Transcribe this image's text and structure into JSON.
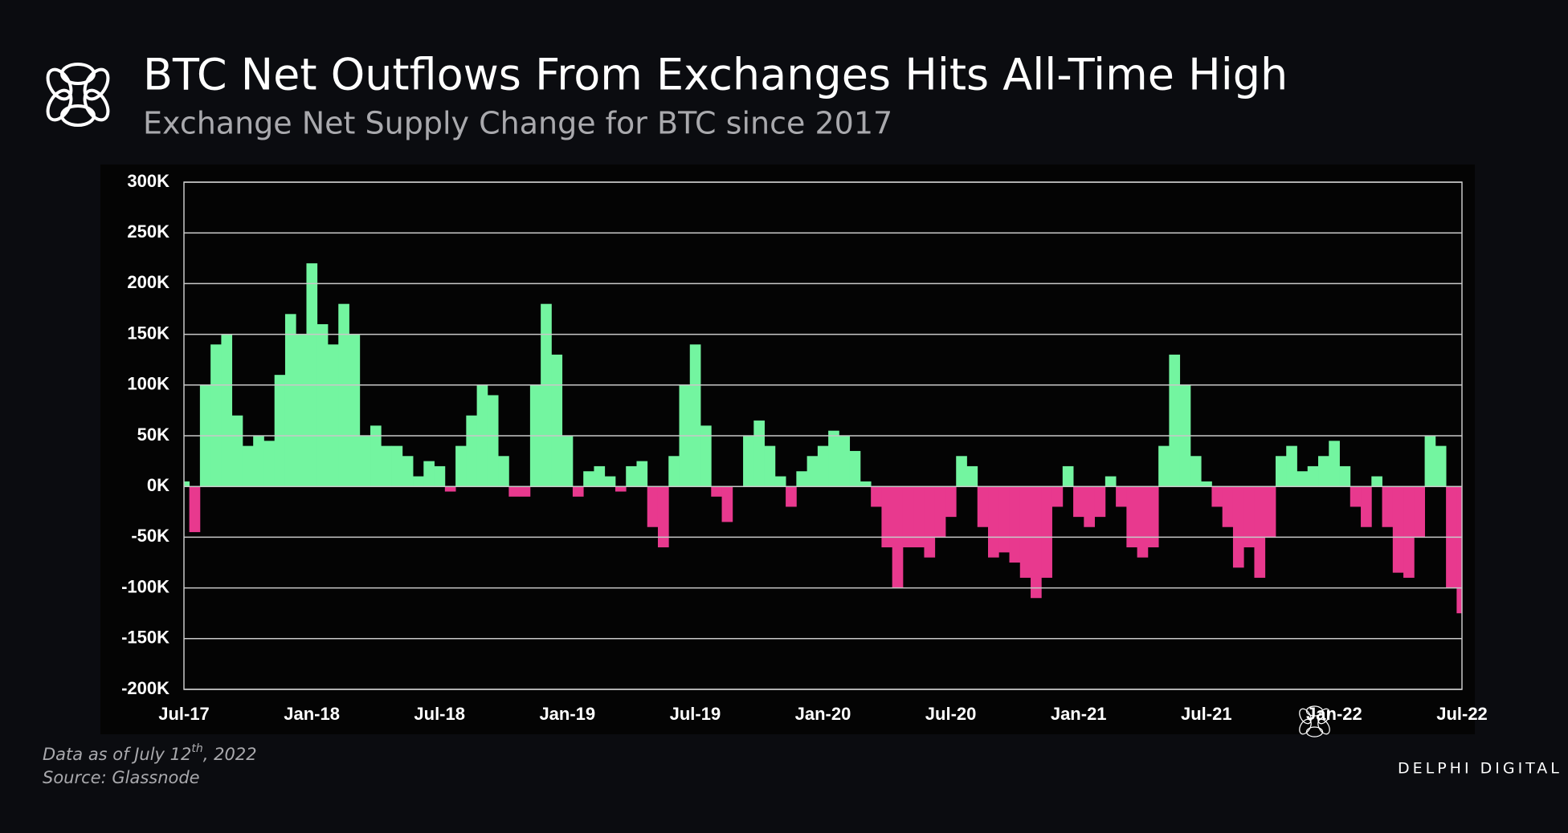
{
  "chart_data": {
    "type": "bar",
    "title": "BTC Net Outflows From Exchanges Hits All-Time High",
    "subtitle": "Exchange Net Supply Change for BTC since 2017",
    "categories": [
      "Jul-17",
      null,
      null,
      null,
      null,
      null,
      null,
      null,
      null,
      null,
      null,
      null,
      "Jan-18",
      null,
      null,
      null,
      null,
      null,
      null,
      null,
      null,
      null,
      null,
      null,
      "Jul-18",
      null,
      null,
      null,
      null,
      null,
      null,
      null,
      null,
      null,
      null,
      null,
      "Jan-19",
      null,
      null,
      null,
      null,
      null,
      null,
      null,
      null,
      null,
      null,
      null,
      "Jul-19",
      null,
      null,
      null,
      null,
      null,
      null,
      null,
      null,
      null,
      null,
      null,
      "Jan-20",
      null,
      null,
      null,
      null,
      null,
      null,
      null,
      null,
      null,
      null,
      null,
      "Jul-20",
      null,
      null,
      null,
      null,
      null,
      null,
      null,
      null,
      null,
      null,
      null,
      "Jan-21",
      null,
      null,
      null,
      null,
      null,
      null,
      null,
      null,
      null,
      null,
      null,
      "Jul-21",
      null,
      null,
      null,
      null,
      null,
      null,
      null,
      null,
      null,
      null,
      null,
      "Jan-22",
      null,
      null,
      null,
      null,
      null,
      null,
      null,
      null,
      null,
      null,
      null,
      "Jul-22"
    ],
    "values": [
      5,
      -45,
      100,
      140,
      150,
      70,
      40,
      50,
      45,
      110,
      170,
      150,
      220,
      160,
      140,
      180,
      150,
      50,
      60,
      40,
      40,
      30,
      10,
      25,
      20,
      -5,
      40,
      70,
      100,
      90,
      30,
      -10,
      -10,
      100,
      180,
      130,
      50,
      -10,
      15,
      20,
      10,
      -5,
      20,
      25,
      -40,
      -60,
      30,
      100,
      140,
      60,
      -10,
      -35,
      0,
      50,
      65,
      40,
      10,
      -20,
      15,
      30,
      40,
      55,
      50,
      35,
      5,
      -20,
      -60,
      -100,
      -60,
      -60,
      -70,
      -50,
      -30,
      30,
      20,
      -40,
      -70,
      -65,
      -75,
      -90,
      -110,
      -90,
      -20,
      20,
      -30,
      -40,
      -30,
      10,
      -20,
      -60,
      -70,
      -60,
      40,
      130,
      100,
      30,
      5,
      -20,
      -40,
      -80,
      -60,
      -90,
      -50,
      30,
      40,
      15,
      20,
      30,
      45,
      20,
      -20,
      -40,
      10,
      -40,
      -85,
      -90,
      -50,
      50,
      40,
      -100,
      -125
    ],
    "positive_color": "#73f5a0",
    "negative_color": "#e8398e",
    "ylim": [
      -200,
      300
    ],
    "yticks": [
      {
        "value": -200,
        "label": "-200K"
      },
      {
        "value": -150,
        "label": "-150K"
      },
      {
        "value": -100,
        "label": "-100K"
      },
      {
        "value": -50,
        "label": "-50K"
      },
      {
        "value": 0,
        "label": "0K"
      },
      {
        "value": 50,
        "label": "50K"
      },
      {
        "value": 100,
        "label": "100K"
      },
      {
        "value": 150,
        "label": "150K"
      },
      {
        "value": 200,
        "label": "200K"
      },
      {
        "value": 250,
        "label": "250K"
      },
      {
        "value": 300,
        "label": "300K"
      }
    ],
    "grid": true
  },
  "footnote": {
    "before": "Data as of July 12",
    "superscript": "th",
    "after": ", 2022"
  },
  "source": "Source: Glassnode",
  "brand": "DELPHI DIGITAL"
}
